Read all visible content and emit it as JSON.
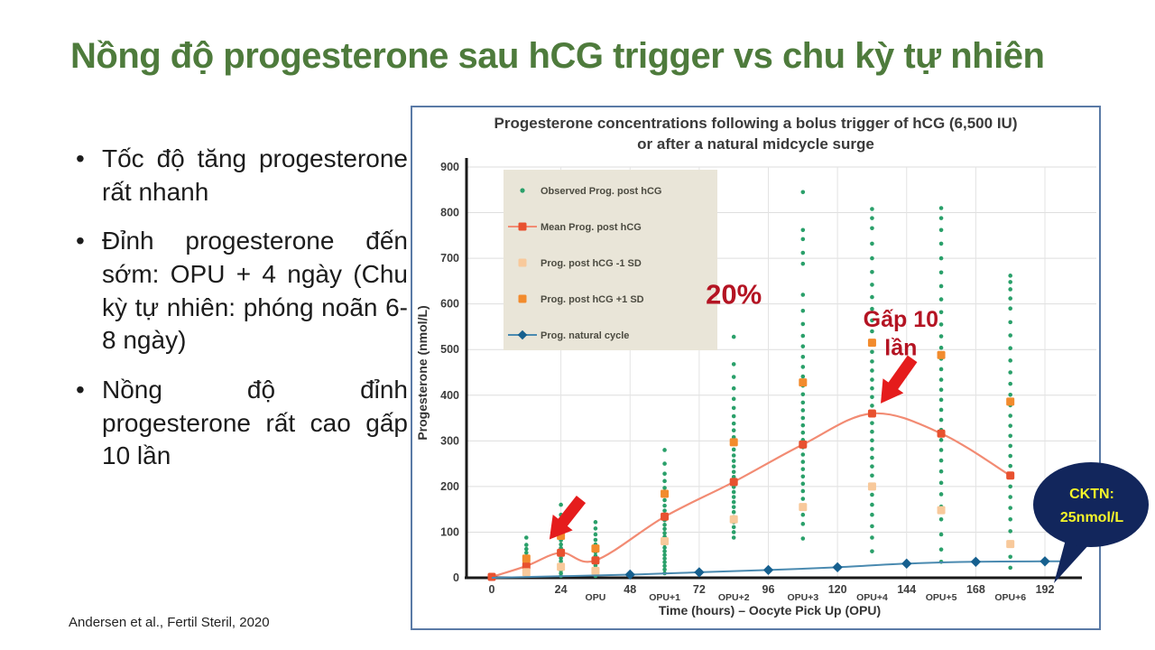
{
  "slide": {
    "title": "Nồng độ progesterone sau hCG trigger vs chu kỳ tự nhiên",
    "bullets": [
      "Tốc độ tăng progesterone rất nhanh",
      "Đỉnh progesterone đến sớm: OPU + 4 ngày (Chu kỳ tự nhiên: phóng noãn 6-8 ngày)",
      "Nồng độ đỉnh progesterone rất cao gấp 10 lần"
    ],
    "citation": "Andersen et al., Fertil Steril, 2020"
  },
  "chart": {
    "title_line1": "Progesterone concentrations following a bolus trigger of hCG (6,500 IU)",
    "title_line2": "or after a natural midcycle surge"
  },
  "chart_data": {
    "type": "scatter",
    "title": "Progesterone concentrations following a bolus trigger of hCG (6,500 IU) or after a natural midcycle surge",
    "xlabel": "Time (hours) – Oocyte Pick Up (OPU)",
    "ylabel": "Progesterone (nmol/L)",
    "xlim": [
      0,
      205
    ],
    "ylim": [
      0,
      900
    ],
    "grid": true,
    "legend_position": "upper-left",
    "y_ticks": [
      0,
      100,
      200,
      300,
      400,
      500,
      600,
      700,
      800,
      900
    ],
    "x_ticks": [
      0,
      24,
      48,
      72,
      96,
      120,
      144,
      168,
      192
    ],
    "x_interticks": [
      {
        "label": "OPU",
        "t": 36
      },
      {
        "label": "OPU+1",
        "t": 60
      },
      {
        "label": "OPU+2",
        "t": 84
      },
      {
        "label": "OPU+3",
        "t": 108
      },
      {
        "label": "OPU+4",
        "t": 132
      },
      {
        "label": "OPU+5",
        "t": 156
      },
      {
        "label": "OPU+6",
        "t": 180
      }
    ],
    "legend": {
      "bg": "#e9e5d8",
      "items": [
        {
          "label": "Observed Prog. post hCG",
          "type": "dot",
          "color": "#2aa06a"
        },
        {
          "label": "Mean Prog. post hCG",
          "type": "line-square",
          "color": "#e8512f",
          "line": "#f28b73"
        },
        {
          "label": "Prog. post hCG -1 SD",
          "type": "square",
          "color": "#f8c99b"
        },
        {
          "label": "Prog. post hCG +1 SD",
          "type": "square",
          "color": "#f28b2d"
        },
        {
          "label": "Prog. natural cycle",
          "type": "line-diamond",
          "color": "#16608f",
          "line": "#4a8ab0"
        }
      ]
    },
    "series": [
      {
        "name": "Observed Prog. post hCG",
        "style": "scatter",
        "color": "#2aa06a",
        "columns": [
          {
            "t": 12,
            "values": [
              5,
              12,
              18,
              25,
              32,
              40,
              47,
              55,
              63,
              72,
              88
            ]
          },
          {
            "t": 24,
            "values": [
              4,
              10,
              16,
              22,
              29,
              36,
              43,
              50,
              57,
              65,
              73,
              82,
              92,
              104,
              118,
              138,
              160
            ]
          },
          {
            "t": 36,
            "values": [
              4,
              9,
              15,
              21,
              27,
              34,
              41,
              48,
              56,
              64,
              73,
              83,
              95,
              108,
              122
            ]
          },
          {
            "t": 60,
            "values": [
              10,
              18,
              26,
              34,
              42,
              50,
              58,
              66,
              74,
              82,
              90,
              98,
              107,
              116,
              126,
              136,
              147,
              158,
              170,
              183,
              197,
              212,
              228,
              250,
              280
            ]
          },
          {
            "t": 84,
            "values": [
              88,
              100,
              111,
              122,
              133,
              144,
              155,
              166,
              177,
              188,
              199,
              210,
              221,
              232,
              244,
              256,
              268,
              281,
              294,
              308,
              323,
              338,
              354,
              372,
              392,
              415,
              440,
              468,
              528
            ]
          },
          {
            "t": 108,
            "values": [
              86,
              118,
              138,
              156,
              173,
              190,
              206,
              222,
              238,
              254,
              270,
              286,
              302,
              318,
              334,
              350,
              367,
              384,
              402,
              421,
              441,
              462,
              484,
              507,
              530,
              556,
              585,
              620,
              688,
              712,
              742,
              762,
              845
            ]
          },
          {
            "t": 132,
            "values": [
              58,
              88,
              113,
              138,
              160,
              182,
              203,
              224,
              244,
              263,
              282,
              301,
              320,
              339,
              358,
              377,
              396,
              415,
              434,
              454,
              474,
              495,
              517,
              540,
              564,
              589,
              615,
              642,
              670,
              700,
              732,
              766,
              788,
              808
            ]
          },
          {
            "t": 156,
            "values": [
              35,
              62,
              95,
              128,
              156,
              183,
              208,
              233,
              257,
              280,
              302,
              324,
              346,
              368,
              390,
              412,
              434,
              457,
              480,
              504,
              529,
              555,
              582,
              610,
              639,
              669,
              700,
              732,
              762,
              788,
              810
            ]
          },
          {
            "t": 180,
            "values": [
              22,
              46,
              74,
              102,
              128,
              153,
              177,
              200,
              223,
              245,
              267,
              289,
              311,
              333,
              355,
              378,
              401,
              425,
              450,
              476,
              503,
              531,
              560,
              590,
              612,
              632,
              648,
              662
            ]
          }
        ]
      },
      {
        "name": "Mean Prog. post hCG",
        "style": "line-square",
        "color": "#e8512f",
        "line_color": "#f28b73",
        "x": [
          0,
          12,
          24,
          36,
          60,
          84,
          108,
          132,
          156,
          180
        ],
        "y": [
          2,
          26,
          55,
          38,
          134,
          210,
          292,
          360,
          316,
          224
        ]
      },
      {
        "name": "Prog. post hCG -1 SD",
        "style": "square",
        "color": "#f8c99b",
        "x": [
          12,
          24,
          36,
          60,
          84,
          108,
          132,
          156,
          180
        ],
        "y": [
          12,
          24,
          15,
          80,
          128,
          155,
          200,
          148,
          74
        ]
      },
      {
        "name": "Prog. post hCG +1 SD",
        "style": "square",
        "color": "#f28b2d",
        "x": [
          12,
          24,
          36,
          60,
          84,
          108,
          132,
          156,
          180
        ],
        "y": [
          42,
          92,
          64,
          184,
          297,
          428,
          515,
          488,
          386
        ]
      },
      {
        "name": "Prog. natural cycle",
        "style": "line-diamond",
        "color": "#16608f",
        "line_color": "#4a8ab0",
        "x": [
          0,
          48,
          72,
          96,
          120,
          144,
          168,
          192,
          200
        ],
        "y": [
          0,
          7,
          12,
          17,
          23,
          31,
          35,
          36,
          36
        ],
        "marker_x": [
          48,
          72,
          96,
          120,
          144,
          168,
          192
        ]
      }
    ],
    "annotations": {
      "pct_label": "20%",
      "pct_t": 84,
      "pct_v": 620,
      "gap_line1": "Gấp 10",
      "gap_line2": "lần",
      "gap_t": 142,
      "gap_v1": 568,
      "gap_v2": 505,
      "arrow_color": "#e51c1c",
      "arrows": [
        {
          "tail_t": 146,
          "tail_v": 480,
          "head_t": 135,
          "head_v": 382
        },
        {
          "tail_t": 31,
          "tail_v": 172,
          "head_t": 20,
          "head_v": 84
        }
      ],
      "bubble_line1": "CKTN:",
      "bubble_line2": "25nmol/L",
      "bubble_color": "#12265c"
    }
  }
}
